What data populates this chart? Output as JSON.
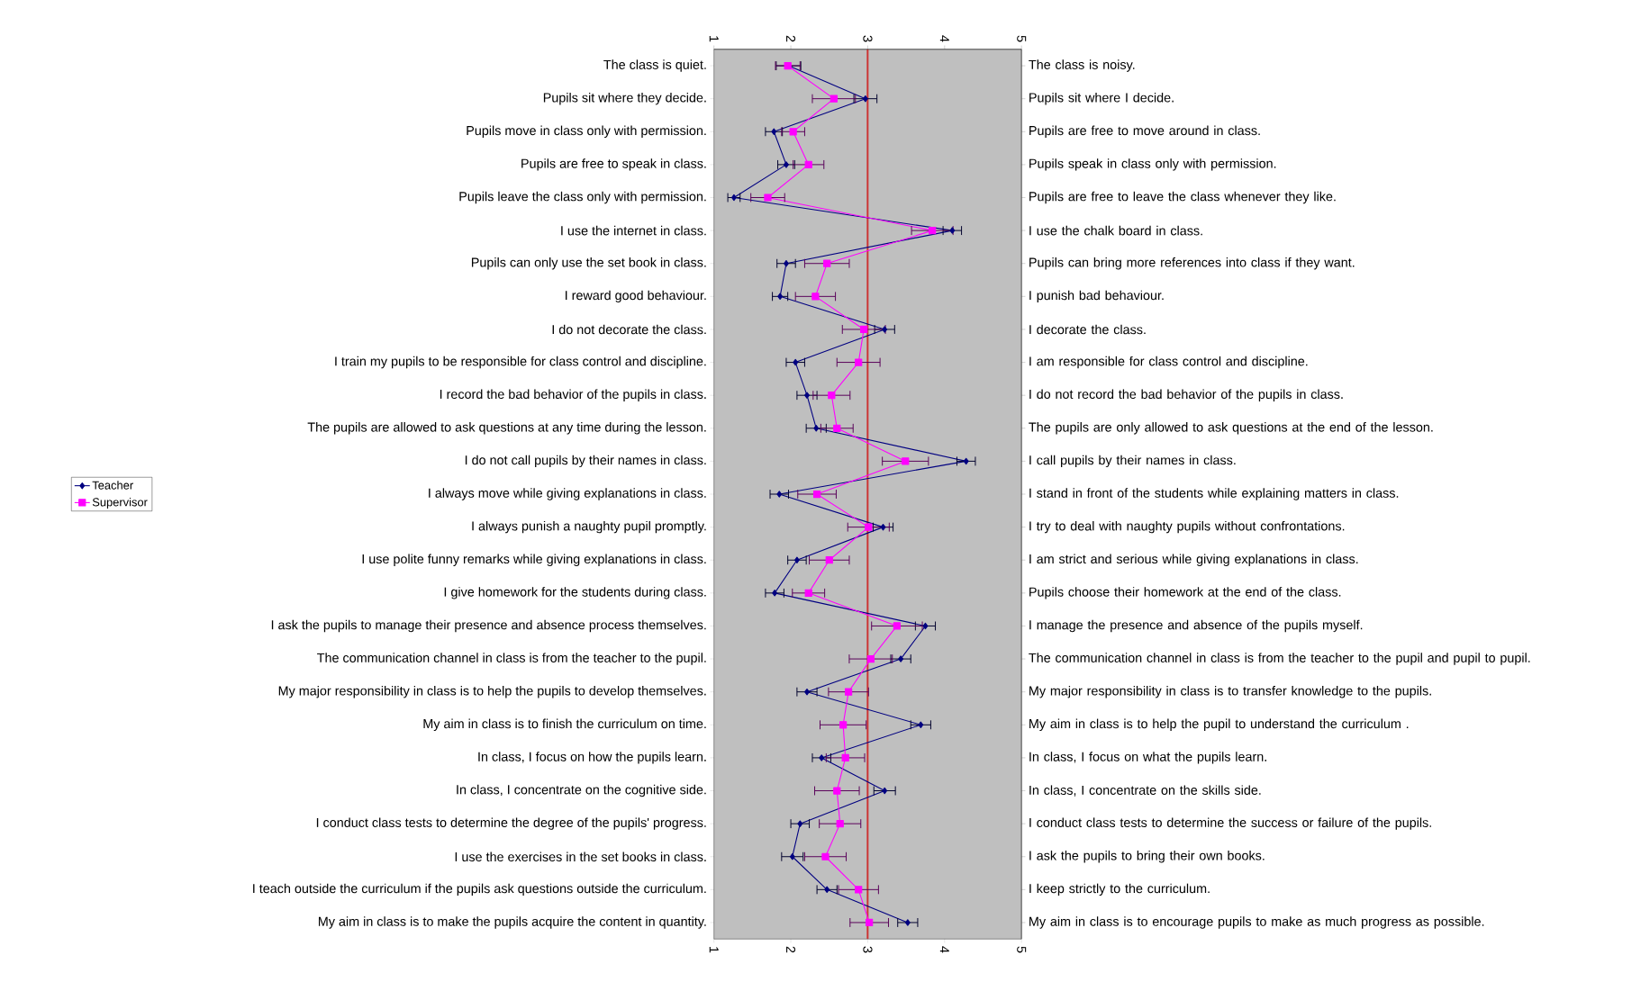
{
  "chart_data": {
    "type": "line",
    "orientation": "horizontal",
    "categories": [
      "The class is quiet.",
      "Pupils sit where they decide.",
      "Pupils move in class only with permission.",
      "Pupils are free to speak in class.",
      "Pupils leave the class only with permission.",
      "I use the internet in class.",
      "Pupils can only use the set book in class.",
      "I reward good behaviour.",
      "I do not decorate the class.",
      "I train my pupils to be responsible for class control and discipline.",
      "I record the bad behavior of the pupils in class.",
      "The pupils are allowed to ask questions at any time during the lesson.",
      "I do not call pupils by their names in class.",
      "I always move while giving explanations in class.",
      "I always punish a naughty pupil promptly.",
      "I use polite funny remarks while giving explanations in class.",
      "I give homework for the students during class.",
      "I ask the pupils to manage their presence and absence process themselves.",
      "The communication channel in class is from the teacher to the pupil.",
      "My major responsibility in class is to help the pupils to develop themselves.",
      "My aim in class is to finish the curriculum on time.",
      "In class, I focus on how the pupils learn.",
      "In class, I concentrate on the cognitive side.",
      "I conduct class tests to determine the degree of the pupils' progress.",
      "I use the exercises in the set books in class.",
      "I teach outside the curriculum if the pupils ask questions outside the curriculum.",
      "My aim in class is to make the pupils acquire the content in quantity."
    ],
    "y2_categories": [
      "The class is noisy.",
      "Pupils sit where I decide.",
      "Pupils are free to move around in class.",
      "Pupils speak in class only with permission.",
      "Pupils are free to leave the class whenever they like.",
      "I use the chalk board in class.",
      "Pupils can bring more references into class if they want.",
      "I punish bad behaviour.",
      "I decorate the class.",
      "I am responsible for class control and discipline.",
      "I do not record the bad behavior of the pupils in class.",
      "The pupils are only allowed to ask questions at the end of the lesson.",
      "I call pupils by their names in class.",
      "I stand in front of the students while explaining matters in class.",
      "I try to deal with naughty pupils without confrontations.",
      "I am strict and serious while giving explanations in class.",
      "Pupils choose their homework at the end of the class.",
      "I manage the presence and absence of the pupils myself.",
      "The communication channel in class is from the teacher to the pupil and pupil to pupil.",
      "My major responsibility in class is to transfer knowledge to the pupils.",
      "My aim in class is to help the pupil to understand the curriculum .",
      "In class, I focus on what the pupils learn.",
      "In class, I concentrate on the skills side.",
      "I conduct class tests to determine the success or failure of the pupils.",
      "I ask the pupils to bring their own books.",
      "I keep strictly to the curriculum.",
      "My aim in class is to encourage pupils to make as much progress as possible."
    ],
    "xlim": [
      1,
      5
    ],
    "xticks": [
      1,
      2,
      3,
      4,
      5
    ],
    "x2lim": [
      1,
      5
    ],
    "x2ticks": [
      1,
      2,
      3,
      4,
      5
    ],
    "series": [
      {
        "name": "Teacher",
        "color": "#000080",
        "marker": "diamond",
        "values": [
          1.97,
          2.97,
          1.78,
          1.94,
          1.26,
          4.1,
          1.94,
          1.86,
          3.22,
          2.06,
          2.21,
          2.33,
          4.28,
          1.85,
          3.2,
          2.08,
          1.79,
          3.75,
          3.43,
          2.21,
          3.69,
          2.4,
          3.22,
          2.12,
          2.02,
          2.47,
          3.52
        ],
        "errors": [
          0.16,
          0.15,
          0.11,
          0.11,
          0.08,
          0.12,
          0.12,
          0.1,
          0.13,
          0.12,
          0.13,
          0.13,
          0.12,
          0.12,
          0.13,
          0.12,
          0.12,
          0.13,
          0.13,
          0.13,
          0.13,
          0.12,
          0.14,
          0.12,
          0.14,
          0.13,
          0.13
        ]
      },
      {
        "name": "Supervisor",
        "color": "#ff00ff",
        "marker": "square",
        "values": [
          1.96,
          2.56,
          2.03,
          2.23,
          1.7,
          3.84,
          2.47,
          2.32,
          2.95,
          2.88,
          2.53,
          2.6,
          3.49,
          2.34,
          3.01,
          2.5,
          2.23,
          3.38,
          3.04,
          2.75,
          2.68,
          2.71,
          2.6,
          2.64,
          2.45,
          2.88,
          3.02
        ],
        "errors": [
          0.16,
          0.28,
          0.15,
          0.2,
          0.22,
          0.27,
          0.29,
          0.26,
          0.28,
          0.28,
          0.24,
          0.21,
          0.3,
          0.25,
          0.27,
          0.26,
          0.21,
          0.33,
          0.28,
          0.26,
          0.3,
          0.25,
          0.29,
          0.27,
          0.27,
          0.26,
          0.25
        ]
      }
    ],
    "ref_lines": [
      {
        "axis": "x",
        "value": 3,
        "color": "#cc3333"
      }
    ],
    "legend": "left"
  }
}
